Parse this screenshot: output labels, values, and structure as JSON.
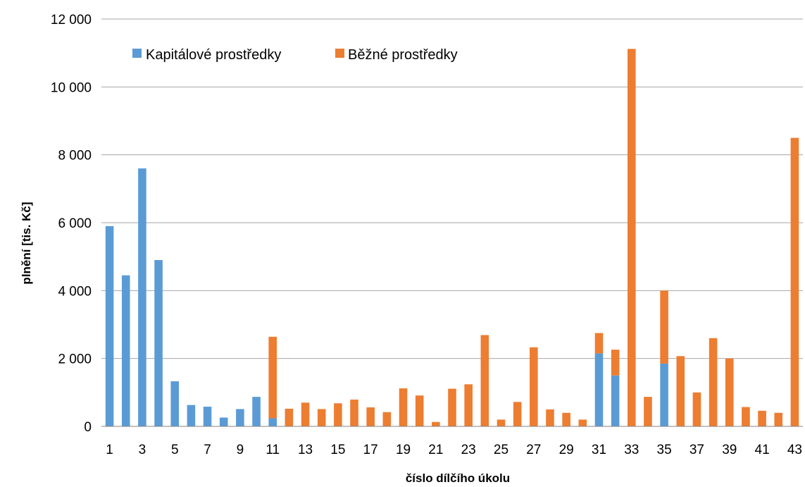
{
  "chart_data": {
    "type": "bar",
    "stacked": true,
    "title": "",
    "xlabel": "číslo dílčího úkolu",
    "ylabel": "plnění [tis. Kč]",
    "ylim": [
      0,
      12000
    ],
    "yticks": [
      0,
      2000,
      4000,
      6000,
      8000,
      10000,
      12000
    ],
    "ytick_labels": [
      "0",
      "2 000",
      "4 000",
      "6 000",
      "8 000",
      "10 000",
      "12 000"
    ],
    "grid": true,
    "legend_position": "top-left",
    "categories": [
      1,
      2,
      3,
      4,
      5,
      6,
      7,
      8,
      9,
      10,
      11,
      12,
      13,
      14,
      15,
      16,
      17,
      18,
      19,
      20,
      21,
      22,
      23,
      24,
      25,
      26,
      27,
      28,
      29,
      30,
      31,
      32,
      33,
      34,
      35,
      36,
      37,
      38,
      39,
      40,
      41,
      42,
      43
    ],
    "xtick_labels": [
      "1",
      "3",
      "5",
      "7",
      "9",
      "11",
      "13",
      "15",
      "17",
      "19",
      "21",
      "23",
      "25",
      "27",
      "29",
      "31",
      "33",
      "35",
      "37",
      "39",
      "41",
      "43"
    ],
    "series": [
      {
        "name": "Kapitálové prostředky",
        "color": "#5B9BD5",
        "values": [
          5900,
          4450,
          7600,
          4900,
          1330,
          630,
          580,
          260,
          510,
          870,
          240,
          0,
          0,
          0,
          0,
          0,
          0,
          0,
          0,
          0,
          0,
          0,
          0,
          0,
          0,
          0,
          0,
          0,
          0,
          0,
          2150,
          1500,
          0,
          0,
          1850,
          0,
          0,
          0,
          0,
          0,
          0,
          0,
          0
        ]
      },
      {
        "name": "Běžné prostředky",
        "color": "#ED7D31",
        "values": [
          0,
          0,
          0,
          0,
          0,
          0,
          0,
          0,
          0,
          0,
          2400,
          520,
          700,
          510,
          680,
          790,
          560,
          420,
          1120,
          910,
          130,
          1110,
          1240,
          2690,
          200,
          720,
          2330,
          500,
          400,
          200,
          600,
          760,
          11120,
          870,
          2150,
          2070,
          1000,
          2600,
          2000,
          570,
          460,
          400,
          8500
        ]
      }
    ]
  }
}
